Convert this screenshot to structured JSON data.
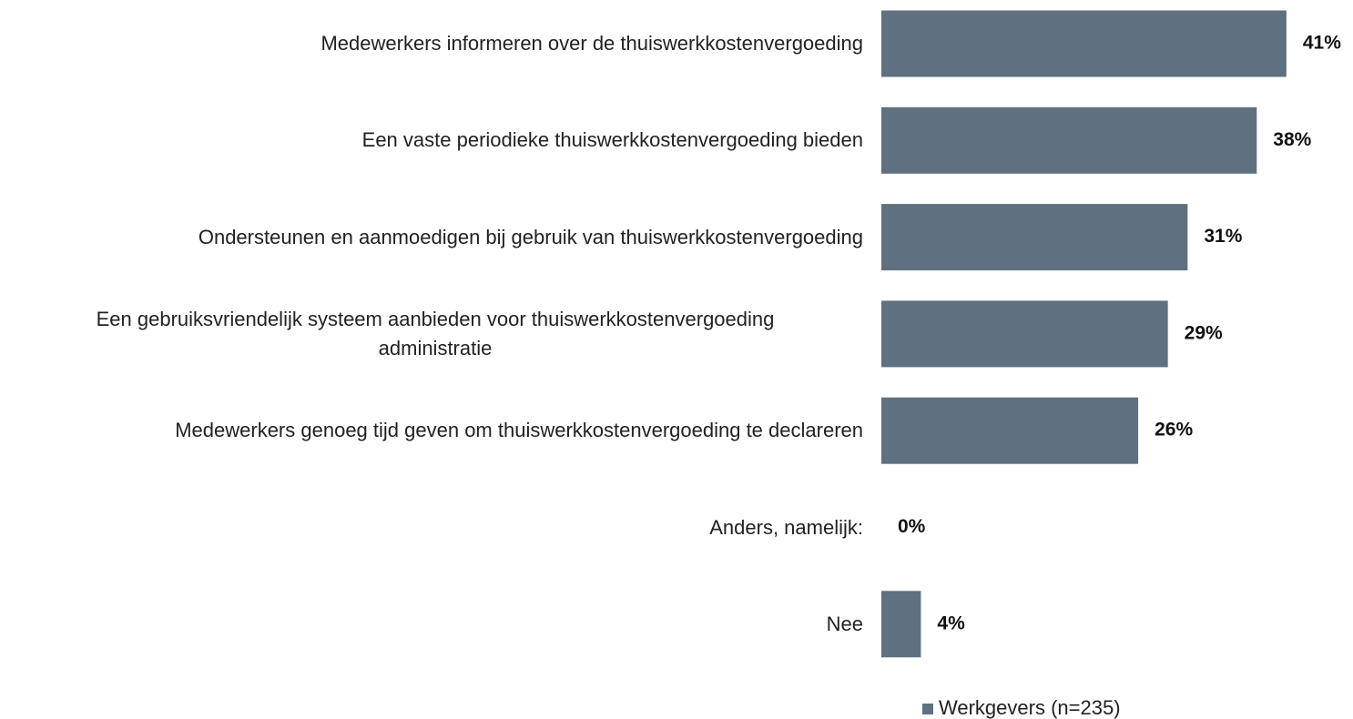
{
  "chart_data": {
    "type": "bar",
    "orientation": "horizontal",
    "categories": [
      "Medewerkers informeren over de thuiswerkkostenvergoeding",
      "Een vaste periodieke thuiswerkkostenvergoeding bieden",
      "Ondersteunen en aanmoedigen bij gebruik van thuiswerkkostenvergoeding",
      "Een gebruiksvriendelijk systeem aanbieden voor thuiswerkkostenvergoeding\nadministratie",
      "Medewerkers genoeg tijd geven om thuiswerkkostenvergoeding te declareren",
      "Anders, namelijk:",
      "Nee"
    ],
    "series": [
      {
        "name": "Werkgevers (n=235)",
        "color": "#5f7080",
        "values": [
          41,
          38,
          31,
          29,
          26,
          0,
          4
        ],
        "value_labels": [
          "41%",
          "38%",
          "31%",
          "29%",
          "26%",
          "0%",
          "4%"
        ]
      }
    ],
    "legend": "bottom"
  }
}
